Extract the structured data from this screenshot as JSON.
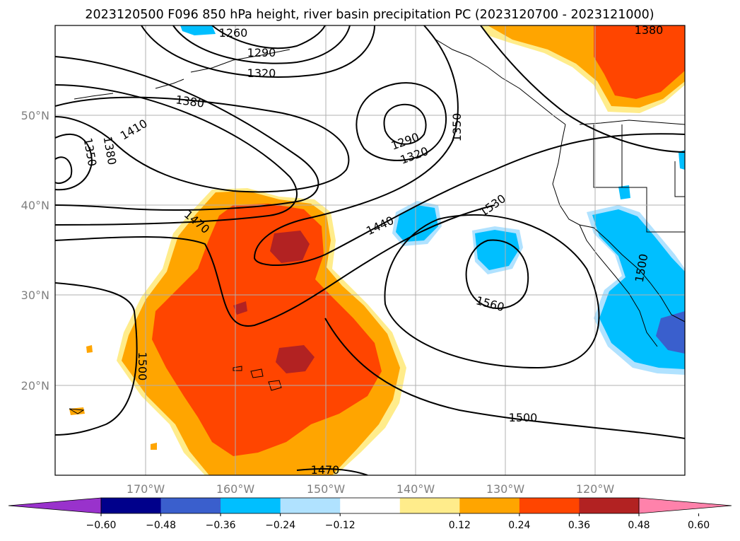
{
  "title": "2023120500 F096 850 hPa height, river basin precipitation PC (2023120700 - 2023121000)",
  "lat_labels": [
    "50°N",
    "40°N",
    "30°N",
    "20°N"
  ],
  "lon_labels": [
    "170°W",
    "160°W",
    "150°W",
    "140°W",
    "130°W",
    "120°W"
  ],
  "contour_labels": [
    "1260",
    "1290",
    "1320",
    "1380",
    "1410",
    "1350",
    "1380",
    "1290",
    "1320",
    "1350",
    "1470",
    "1440",
    "1530",
    "1560",
    "1500",
    "1500",
    "1470",
    "1500",
    "1380"
  ],
  "colorbar": {
    "ticks": [
      "−0.60",
      "−0.48",
      "−0.36",
      "−0.24",
      "−0.12",
      "0.12",
      "0.24",
      "0.36",
      "0.48",
      "0.60"
    ],
    "colors": [
      "#9932cc",
      "#00008b",
      "#3a5fcd",
      "#00bfff",
      "#b0e2ff",
      "#ffffff",
      "#ffec8b",
      "#ffa500",
      "#ff4500",
      "#b22222",
      "#ff82ab"
    ]
  }
}
